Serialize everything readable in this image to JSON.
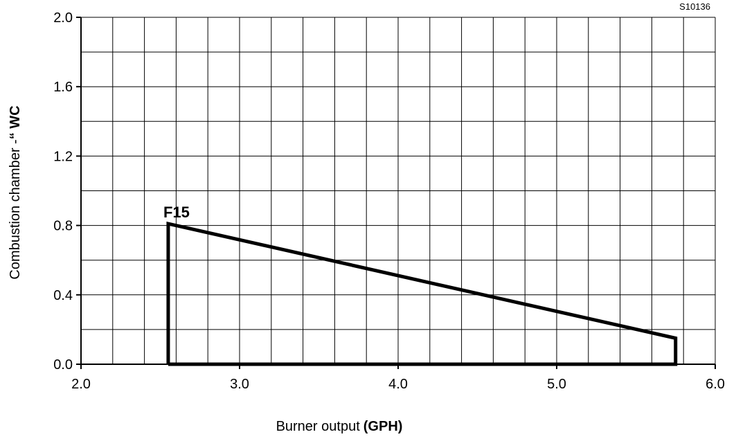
{
  "figure_code": "S10136",
  "chart_data": {
    "type": "line",
    "xlabel": "Burner output",
    "xlabel_unit": "(GPH)",
    "ylabel": "Combustion chamber -",
    "ylabel_unit": "“ WC",
    "xlim": [
      2.0,
      6.0
    ],
    "ylim": [
      0.0,
      2.0
    ],
    "x_ticks": [
      "2.0",
      "3.0",
      "4.0",
      "5.0",
      "6.0"
    ],
    "y_ticks": [
      "0.0",
      "0.4",
      "0.8",
      "1.2",
      "1.6",
      "2.0"
    ],
    "grid": true,
    "x_grid_step": 0.2,
    "y_grid_step": 0.2,
    "series": [
      {
        "name": "F15",
        "x": [
          2.55,
          2.55,
          5.75,
          5.75,
          2.55
        ],
        "y": [
          0.0,
          0.81,
          0.15,
          0.0,
          0.0
        ]
      }
    ]
  }
}
